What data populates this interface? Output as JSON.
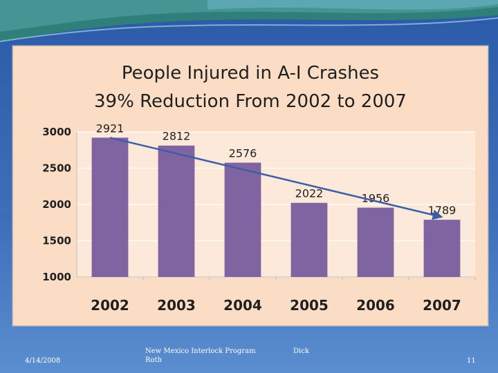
{
  "footer": {
    "date": "4/14/2008",
    "program_line1": "New Mexico Interlock Program",
    "program_line2": "Roth",
    "author": "Dick",
    "page_number": "11"
  },
  "colors": {
    "bar": "#8064a2",
    "trend_arrow": "#3b5ea6",
    "plot_background": "#fde9d9",
    "slide_background": "#2b5aa8"
  },
  "chart_data": {
    "type": "bar",
    "title": "People Injured in A-I Crashes",
    "subtitle": "39% Reduction From 2002 to 2007",
    "xlabel": "",
    "ylabel": "",
    "categories": [
      "2002",
      "2003",
      "2004",
      "2005",
      "2006",
      "2007"
    ],
    "values": [
      2921,
      2812,
      2576,
      2022,
      1956,
      1789
    ],
    "data_labels": [
      "2921",
      "2812",
      "2576",
      "2022",
      "1956",
      "1789"
    ],
    "ylim": [
      1000,
      3000
    ],
    "yticks": [
      "1000",
      "1500",
      "2000",
      "2500",
      "3000"
    ],
    "grid": true,
    "legend": "none",
    "annotations": [
      {
        "type": "trend-arrow",
        "from_category": "2002",
        "from_value": 2921,
        "to_category": "2007",
        "to_value": 1789
      }
    ]
  }
}
